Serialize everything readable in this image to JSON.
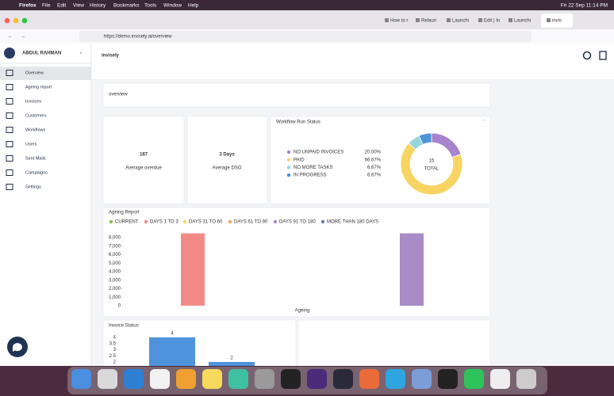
{
  "menubar": {
    "app": "Firefox",
    "menus": [
      "File",
      "Edit",
      "View",
      "History",
      "Bookmarks",
      "Tools",
      "Window",
      "Help"
    ],
    "clock": "Fri 22 Sep  11:14 PM"
  },
  "tabs": [
    "How to r",
    "Relaun",
    "Launchi",
    "Edit | In",
    "Launchi",
    "invis"
  ],
  "url": "https://demo.invisely.ai/overview",
  "sidebar": {
    "user_initial": "A",
    "user_name": "ABDUL RAHMAN",
    "items": [
      "Overview",
      "Ageing report",
      "Invoices",
      "Customers",
      "Workflows",
      "Users",
      "Sent Mails",
      "Campaigns",
      "Settings"
    ]
  },
  "header": {
    "logo": "invisely"
  },
  "page_title": "overview",
  "stats": [
    {
      "value": "187",
      "label": "Average overdue"
    },
    {
      "value": "3 Days",
      "label": "Average DSO"
    }
  ],
  "workflow_chart": {
    "type": "donut",
    "title": "Workflow Run Status",
    "categories": [
      "NO UNPAID INVOICES",
      "PAID",
      "NO MORE TASKS",
      "IN PROGRESS"
    ],
    "values": [
      20,
      66.67,
      6.67,
      6.67
    ],
    "value_labels": [
      "20.00%",
      "66.67%",
      "6.67%",
      "6.67%"
    ],
    "colors": [
      "#a884cc",
      "#f8d462",
      "#94d5da",
      "#4f93dc"
    ],
    "center_value": "15",
    "center_label": "TOTAL"
  },
  "ageing_chart": {
    "type": "bar",
    "title": "Ageing Report",
    "x_label": "Ageing",
    "series": [
      {
        "name": "CURRENT",
        "color": "#8bbf4a",
        "values": [
          0
        ]
      },
      {
        "name": "DAYS 1 TO 3",
        "color": "#f28b86",
        "values": [
          8500
        ]
      },
      {
        "name": "DAYS 31 TO 60",
        "color": "#f8d462",
        "values": [
          0
        ]
      },
      {
        "name": "DAYS 61 TO 90",
        "color": "#f3a55f",
        "values": [
          0
        ]
      },
      {
        "name": "DAYS 91 TO 180",
        "color": "#a98bc8",
        "values": [
          8500
        ]
      },
      {
        "name": "MORE THAN 180 DAYS",
        "color": "#5b80c0",
        "values": [
          0
        ]
      }
    ],
    "ylim": [
      0,
      8500
    ],
    "yticks": [
      0,
      {
        "value": 1000,
        "label": "1,000"
      },
      {
        "value": 2000,
        "label": "2,000"
      },
      {
        "value": 3000,
        "label": "3,000"
      },
      {
        "value": 4000,
        "label": "4,000"
      },
      {
        "value": 5000,
        "label": "5,000"
      },
      {
        "value": 6000,
        "label": "6,000"
      },
      {
        "value": 7000,
        "label": "7,000"
      },
      {
        "value": 8000,
        "label": "8,000"
      }
    ]
  },
  "invoice_chart": {
    "type": "bar",
    "title": "Invoice Status",
    "values": [
      4,
      2
    ],
    "color": "#4f93dc",
    "ylim": [
      0,
      4.4
    ],
    "yticks": [
      2,
      2.5,
      3,
      3.5,
      4
    ]
  }
}
